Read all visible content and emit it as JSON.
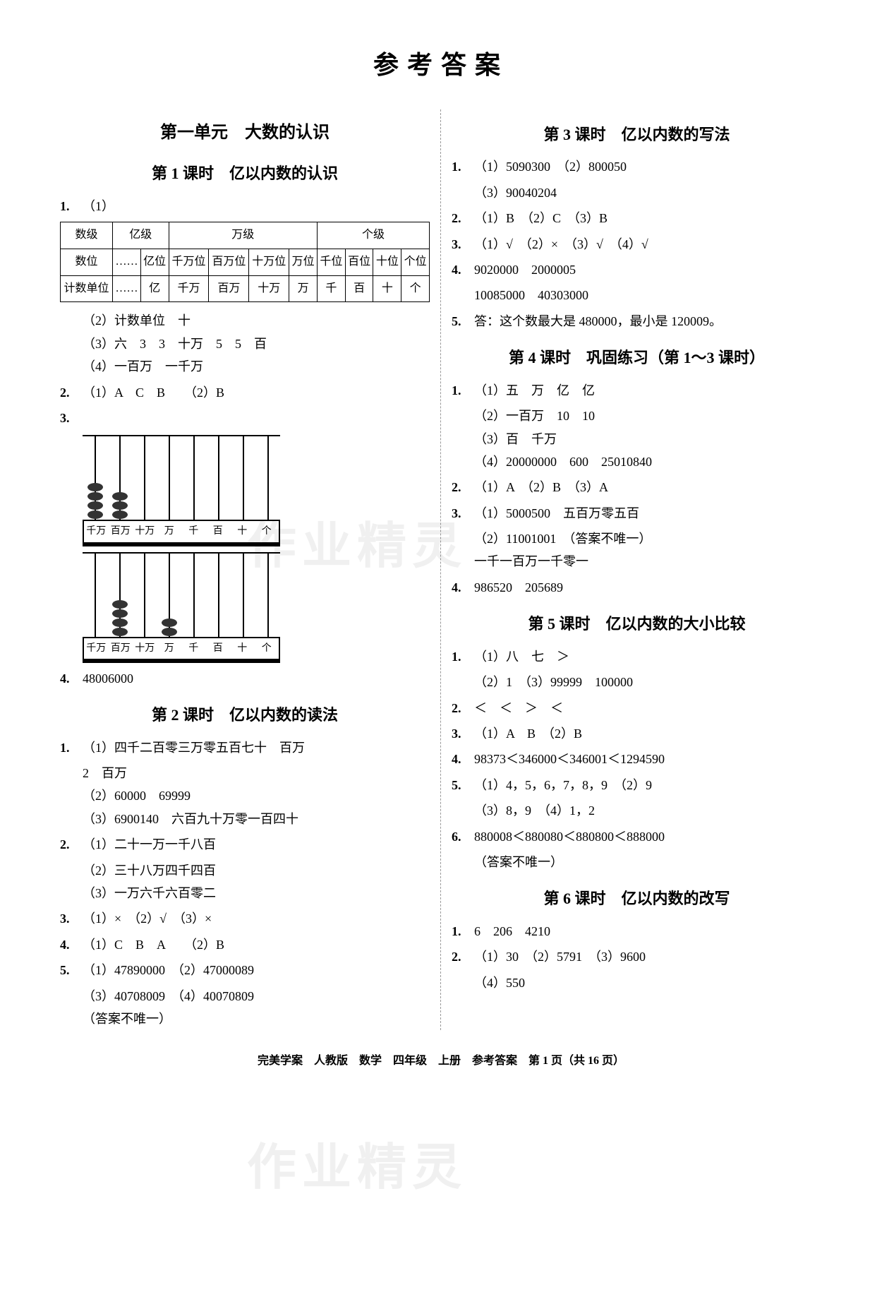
{
  "page_title": "参考答案",
  "watermark": "作业精灵",
  "footer": "完美学案　人教版　数学　四年级　上册　参考答案　第 1 页（共 16 页）",
  "left": {
    "unit_title": "第一单元　大数的认识",
    "lesson1": {
      "title": "第 1 课时　亿以内数的认识",
      "q1_num": "1.",
      "q1_1": "（1）",
      "table": {
        "r1": [
          "数级",
          "亿级",
          "万级",
          "个级"
        ],
        "r2_label": "数位",
        "r2": [
          "……",
          "亿位",
          "千万位",
          "百万位",
          "十万位",
          "万位",
          "千位",
          "百位",
          "十位",
          "个位"
        ],
        "r3_label": "计数单位",
        "r3": [
          "……",
          "亿",
          "千万",
          "百万",
          "十万",
          "万",
          "千",
          "百",
          "十",
          "个"
        ]
      },
      "q1_2": "（2）计数单位　十",
      "q1_3": "（3）六　3　3　十万　5　5　百",
      "q1_4": "（4）一百万　一千万",
      "q2_num": "2.",
      "q2": "（1）A　C　B　　（2）B",
      "q3_num": "3.",
      "abacus_labels": [
        "千万",
        "百万",
        "十万",
        "万",
        "千",
        "百",
        "十",
        "个"
      ],
      "abacus1_beads": [
        4,
        3,
        0,
        0,
        0,
        0,
        0,
        0
      ],
      "abacus2_beads": [
        0,
        4,
        0,
        2,
        0,
        0,
        0,
        0
      ],
      "q4_num": "4.",
      "q4": "48006000"
    },
    "lesson2": {
      "title": "第 2 课时　亿以内数的读法",
      "q1_num": "1.",
      "q1_1": "（1）四千二百零三万零五百七十　百万",
      "q1_1b": "2　百万",
      "q1_2": "（2）60000　69999",
      "q1_3": "（3）6900140　六百九十万零一百四十",
      "q2_num": "2.",
      "q2_1": "（1）二十一万一千八百",
      "q2_2": "（2）三十八万四千四百",
      "q2_3": "（3）一万六千六百零二",
      "q3_num": "3.",
      "q3": "（1）×　（2）√　（3）×",
      "q4_num": "4.",
      "q4": "（1）C　B　A　　（2）B",
      "q5_num": "5.",
      "q5_1": "（1）47890000　（2）47000089",
      "q5_2": "（3）40708009　（4）40070809",
      "q5_3": "（答案不唯一）"
    }
  },
  "right": {
    "lesson3": {
      "title": "第 3 课时　亿以内数的写法",
      "q1_num": "1.",
      "q1_1": "（1）5090300　（2）800050",
      "q1_2": "（3）90040204",
      "q2_num": "2.",
      "q2": "（1）B　（2）C　（3）B",
      "q3_num": "3.",
      "q3": "（1）√　（2）×　（3）√　（4）√",
      "q4_num": "4.",
      "q4_1": "9020000　2000005",
      "q4_2": "10085000　40303000",
      "q5_num": "5.",
      "q5": "答：这个数最大是 480000，最小是 120009。"
    },
    "lesson4": {
      "title": "第 4 课时　巩固练习（第 1～3 课时）",
      "q1_num": "1.",
      "q1_1": "（1）五　万　亿　亿",
      "q1_2": "（2）一百万　10　10",
      "q1_3": "（3）百　千万",
      "q1_4": "（4）20000000　600　25010840",
      "q2_num": "2.",
      "q2": "（1）A　（2）B　（3）A",
      "q3_num": "3.",
      "q3_1": "（1）5000500　五百万零五百",
      "q3_2": "（2）11001001　（答案不唯一）",
      "q3_3": "一千一百万一千零一",
      "q4_num": "4.",
      "q4": "986520　205689"
    },
    "lesson5": {
      "title": "第 5 课时　亿以内数的大小比较",
      "q1_num": "1.",
      "q1_1": "（1）八　七　＞",
      "q1_2": "（2）1　（3）99999　100000",
      "q2_num": "2.",
      "q2": "＜　＜　＞　＜",
      "q3_num": "3.",
      "q3": "（1）A　B　（2）B",
      "q4_num": "4.",
      "q4": "98373＜346000＜346001＜1294590",
      "q5_num": "5.",
      "q5_1": "（1）4，5，6，7，8，9　（2）9",
      "q5_2": "（3）8，9　（4）1，2",
      "q6_num": "6.",
      "q6_1": "880008＜880080＜880800＜888000",
      "q6_2": "（答案不唯一）"
    },
    "lesson6": {
      "title": "第 6 课时　亿以内数的改写",
      "q1_num": "1.",
      "q1": "6　206　4210",
      "q2_num": "2.",
      "q2_1": "（1）30　（2）5791　（3）9600",
      "q2_2": "（4）550"
    }
  }
}
